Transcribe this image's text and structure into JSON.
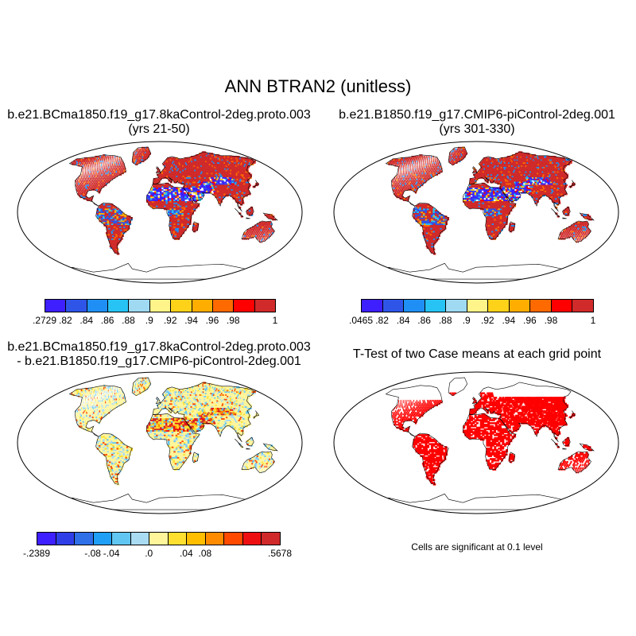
{
  "figure": {
    "title": "ANN BTRAN2 (unitless)"
  },
  "panels": [
    {
      "id": "case1",
      "title_line1": "b.e21.BCma1850.f19_g17.8kaControl-2deg.proto.003",
      "title_line2": "(yrs 21-50)",
      "colorbar": {
        "colors": [
          "#3d1fff",
          "#2f55e8",
          "#1f8ff5",
          "#27c3f5",
          "#9fd9f2",
          "#fff48a",
          "#ffd21a",
          "#ffae00",
          "#ff6a00",
          "#ff0000",
          "#d02a2a"
        ],
        "labels": [
          ".2729",
          ".82",
          ".84",
          ".86",
          ".88",
          ".9",
          ".92",
          ".94",
          ".96",
          ".98",
          "1"
        ]
      }
    },
    {
      "id": "case2",
      "title_line1": "b.e21.B1850.f19_g17.CMIP6-piControl-2deg.001",
      "title_line2": "(yrs 301-330)",
      "colorbar": {
        "colors": [
          "#3d1fff",
          "#2f55e8",
          "#1f8ff5",
          "#27c3f5",
          "#9fd9f2",
          "#fff48a",
          "#ffd21a",
          "#ffae00",
          "#ff6a00",
          "#ff0000",
          "#d02a2a"
        ],
        "labels": [
          ".0465",
          ".82",
          ".84",
          ".86",
          ".88",
          ".9",
          ".92",
          ".94",
          ".96",
          ".98",
          "1"
        ]
      }
    },
    {
      "id": "diff",
      "title_line1": "b.e21.BCma1850.f19_g17.8kaControl-2deg.proto.003",
      "title_line2": "- b.e21.B1850.f19_g17.CMIP6-piControl-2deg.001",
      "colorbar": {
        "colors": [
          "#3d1fff",
          "#2f3fe8",
          "#2f6fe8",
          "#1f9ff5",
          "#62c6f2",
          "#a9dbf2",
          "#fff59a",
          "#ffe030",
          "#ffbe00",
          "#ff8c00",
          "#ff4a00",
          "#ee1010",
          "#d02a2a"
        ],
        "labels": [
          "-.2389",
          "-.08",
          "-.04",
          ".0",
          ".04",
          ".08",
          ".5678"
        ]
      }
    },
    {
      "id": "ttest",
      "title_line1": "T-Test of two Case means at each grid point",
      "note": "Cells are significant at 0.1 level"
    }
  ]
}
